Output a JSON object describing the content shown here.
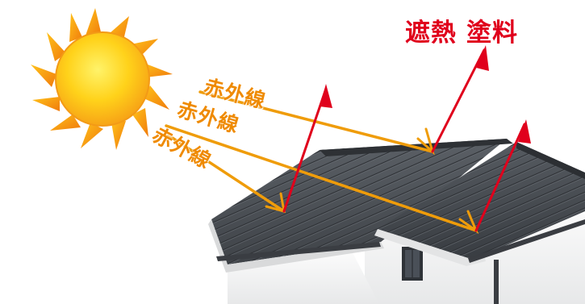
{
  "title": {
    "word1": "遮熱",
    "word2": "塗料",
    "color": "#e0001c"
  },
  "infrared_labels": [
    {
      "text": "赤外線"
    },
    {
      "text": "赤外線"
    },
    {
      "text": "赤外線"
    }
  ],
  "colors": {
    "infrared_arrow": "#ef9c0a",
    "reflected_arrow": "#e0001c",
    "sun_core": "#ffd21a",
    "sun_rays": "#f49a12",
    "roof": "#4d5156",
    "wall": "#f3f3f3"
  }
}
